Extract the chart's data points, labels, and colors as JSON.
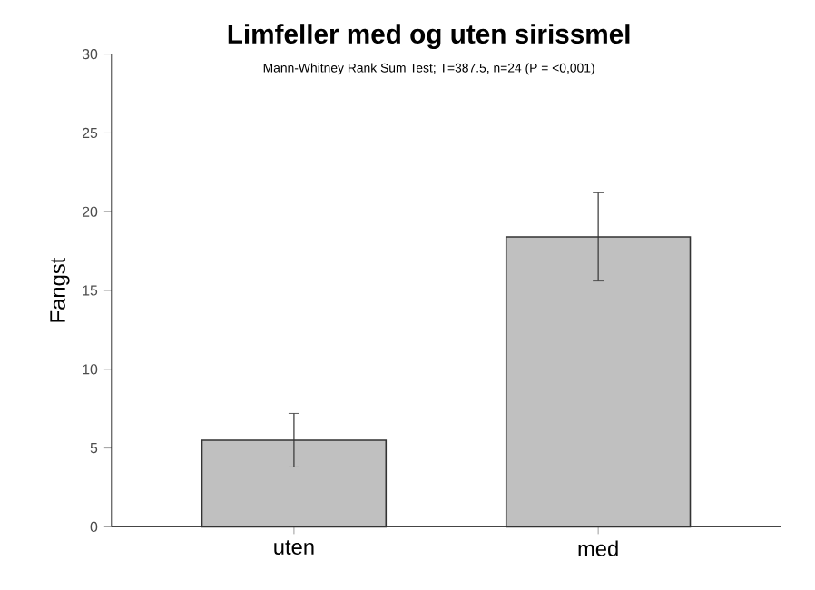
{
  "chart_data": {
    "type": "bar",
    "title": "Limfeller med og uten sirissmel",
    "subtitle": "Mann-Whitney Rank Sum Test; T=387.5, n=24 (P = <0,001)",
    "ylabel": "Fangst",
    "categories": [
      "uten",
      "med"
    ],
    "values": [
      5.5,
      18.4
    ],
    "errors": [
      [
        3.8,
        7.2
      ],
      [
        15.6,
        21.2
      ]
    ],
    "color": "#c0c0c0",
    "ylim": [
      0,
      30
    ],
    "yticks": [
      0,
      5,
      10,
      15,
      20,
      25,
      30
    ],
    "grid": false
  }
}
